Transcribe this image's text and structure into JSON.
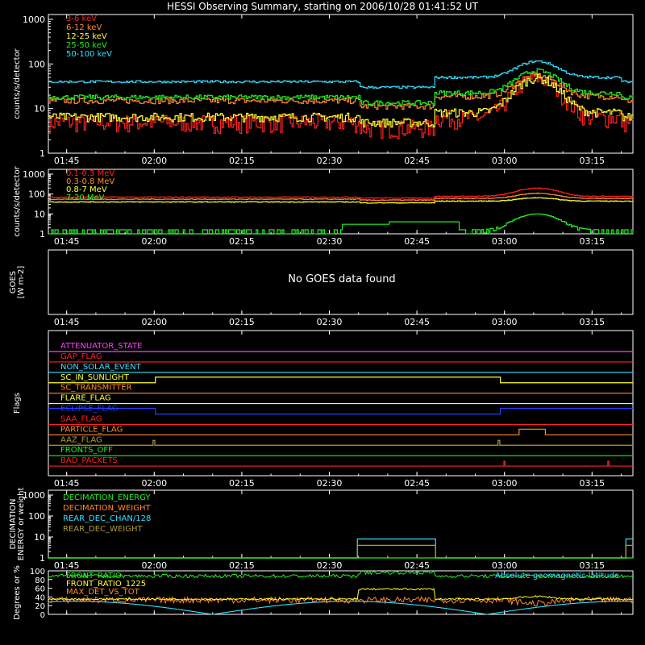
{
  "title": "HESSI Observing Summary, starting on 2006/10/28 01:41:52 UT",
  "time_ticks": [
    "01:45",
    "02:00",
    "02:15",
    "02:30",
    "02:45",
    "03:00",
    "03:15"
  ],
  "time_range": [
    "01:41:52",
    "03:22"
  ],
  "colors": {
    "red": "#ff2020",
    "orange": "#ff8a2a",
    "yellow": "#ffff30",
    "green": "#20f020",
    "cyan": "#30e0ff",
    "magenta": "#ff40ff",
    "blue": "#2040ff",
    "olive": "#b09a3a",
    "salmon": "#ff6040",
    "brown": "#c0a060",
    "white": "#ffffff"
  },
  "chart_data": [
    {
      "type": "line",
      "ylabel": "counts/s/detector",
      "yscale": "log",
      "ylim": [
        1,
        1000
      ],
      "yticks": [
        "1",
        "10",
        "100",
        "1000"
      ],
      "grid": false,
      "legend_position": "top-left",
      "series": [
        {
          "name": "3-6 keV",
          "color": "#ff2020",
          "baseline": 5,
          "flare_peak": 50
        },
        {
          "name": "6-12 keV",
          "color": "#ff8a2a",
          "baseline": 15,
          "flare_peak": 55
        },
        {
          "name": "12-25 keV",
          "color": "#ffff30",
          "baseline": 6.5,
          "flare_peak": 48
        },
        {
          "name": "25-50 keV",
          "color": "#20f020",
          "baseline": 18,
          "flare_peak": 70
        },
        {
          "name": "50-100 keV",
          "color": "#30e0ff",
          "baseline": 40,
          "flare_peak": 115
        }
      ]
    },
    {
      "type": "line",
      "ylabel": "counts/s/detector",
      "yscale": "log",
      "ylim": [
        1,
        1000
      ],
      "yticks": [
        "1",
        "10",
        "100",
        "1000"
      ],
      "grid": false,
      "legend_position": "top-left",
      "series": [
        {
          "name": "0.1-0.3 MeV",
          "color": "#ff2020",
          "baseline": 70,
          "flare_peak": 200
        },
        {
          "name": "0.3-0.8 MeV",
          "color": "#ff8a2a",
          "baseline": 55,
          "flare_peak": 110
        },
        {
          "name": "0.8-7 MeV",
          "color": "#ffff30",
          "baseline": 40,
          "flare_peak": 65
        },
        {
          "name": "7-20 MeV",
          "color": "#20f020",
          "baseline": 1,
          "flare_peak": 10
        }
      ]
    },
    {
      "type": "line",
      "ylabel": "GOES [W m-2]",
      "message": "No GOES data found"
    },
    {
      "type": "flags",
      "ylabel": "Flags",
      "flags": [
        {
          "name": "ATTENUATOR_STATE",
          "color": "#ff40ff"
        },
        {
          "name": "GAP_FLAG",
          "color": "#ff2020"
        },
        {
          "name": "NON_SOLAR_EVENT",
          "color": "#30e0ff"
        },
        {
          "name": "SC_IN_SUNLIGHT",
          "color": "#ffff30"
        },
        {
          "name": "SC_TRANSMITTER",
          "color": "#ff8a2a"
        },
        {
          "name": "FLARE_FLAG",
          "color": "#ffff30"
        },
        {
          "name": "ECLIPSE_FLAG",
          "color": "#2040ff"
        },
        {
          "name": "SAA_FLAG",
          "color": "#ff2020"
        },
        {
          "name": "PARTICLE_FLAG",
          "color": "#ff8a2a"
        },
        {
          "name": "AAZ_FLAG",
          "color": "#b09a3a"
        },
        {
          "name": "FRONTS_OFF",
          "color": "#20f020"
        },
        {
          "name": "BAD_PACKETS",
          "color": "#ff2020"
        }
      ]
    },
    {
      "type": "line",
      "ylabel": "DECIMATION ENERGY or weight",
      "yscale": "log",
      "ylim": [
        1,
        1000
      ],
      "yticks": [
        "1",
        "10",
        "100",
        "1000"
      ],
      "series": [
        {
          "name": "DECIMATION_ENERGY",
          "color": "#20f020"
        },
        {
          "name": "DECIMATION_WEIGHT",
          "color": "#ff8a2a"
        },
        {
          "name": "REAR_DEC_CHAN/128",
          "color": "#30e0ff"
        },
        {
          "name": "REAR_DEC_WEIGHT",
          "color": "#b09a3a"
        }
      ]
    },
    {
      "type": "line",
      "ylabel": "Degrees or %",
      "ylim": [
        0,
        100
      ],
      "yticks": [
        "0",
        "20",
        "40",
        "60",
        "80",
        "100"
      ],
      "series": [
        {
          "name": "FRONT_RATIO",
          "color": "#20f020",
          "baseline": 88
        },
        {
          "name": "FRONT_RATIO_1225",
          "color": "#ffff30",
          "baseline": 35
        },
        {
          "name": "MAX_DET_VS_TOT",
          "color": "#ff8a2a",
          "baseline": 33
        },
        {
          "name": "Absolute geomagnetic latitude",
          "color": "#30e0ff"
        }
      ]
    }
  ]
}
